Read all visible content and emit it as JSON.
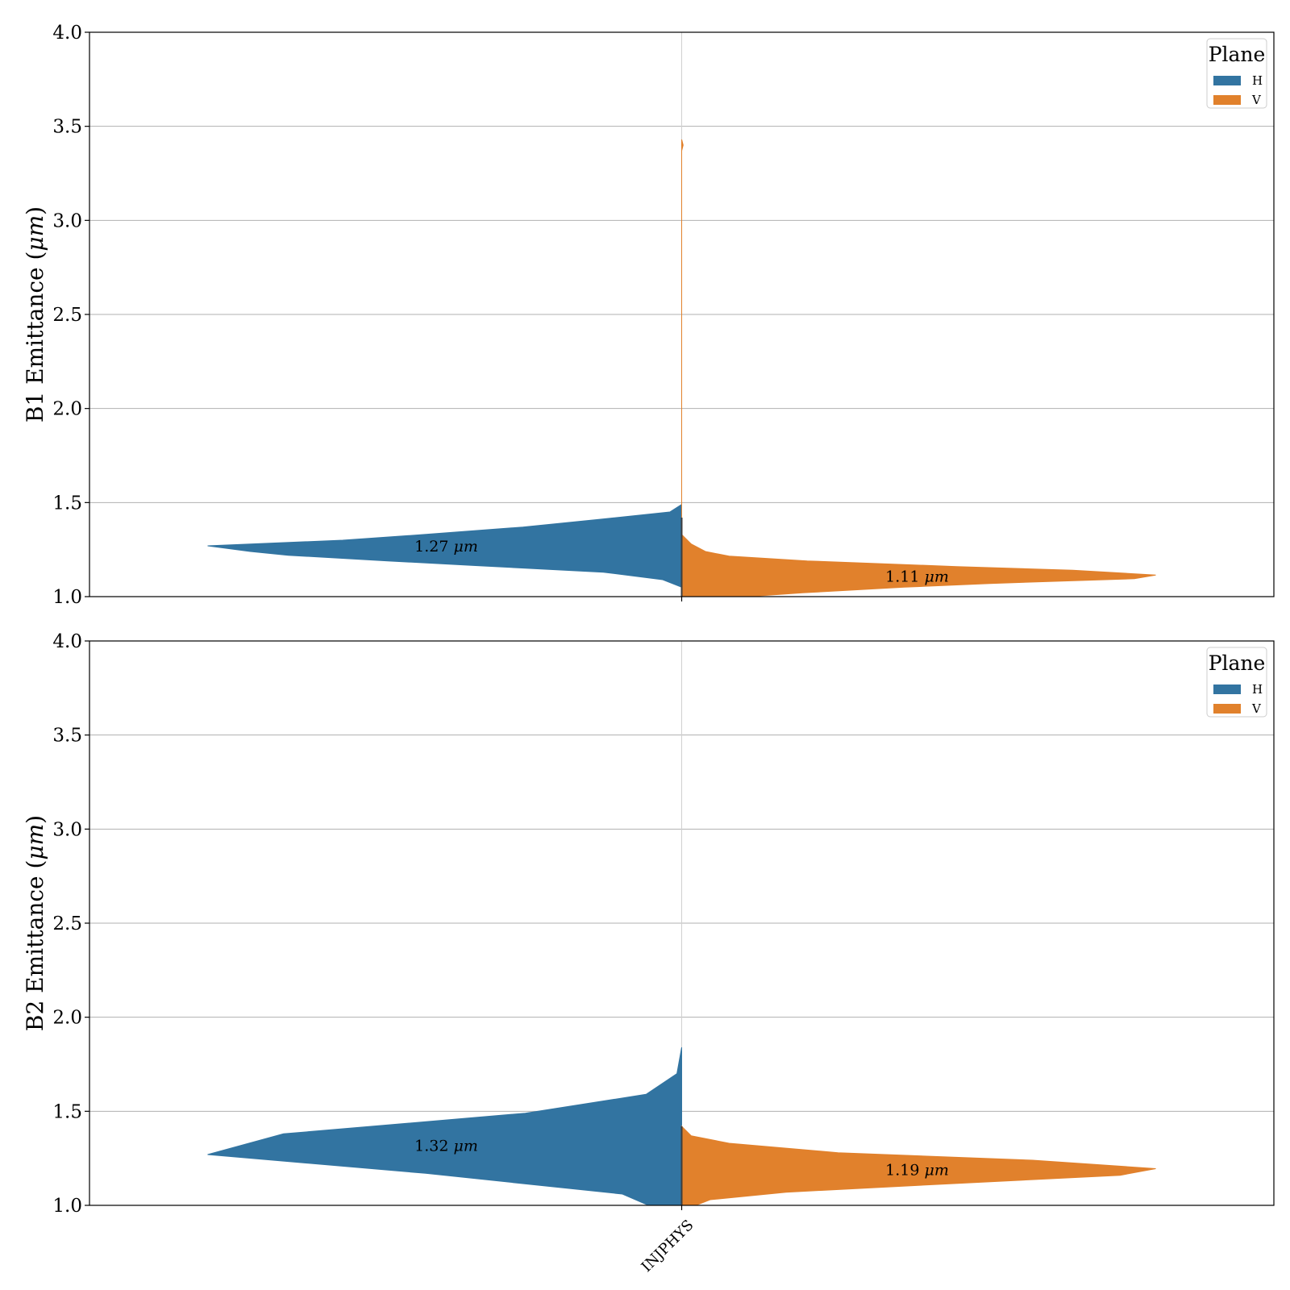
{
  "chart_data": [
    {
      "type": "violin",
      "ylabel": "B1 Emittance (μm)",
      "ylabel_prefix": "B1 Emittance (",
      "ylabel_unit": "μm",
      "ylabel_suffix": ")",
      "ylim": [
        1.0,
        4.0
      ],
      "yticks": [
        "1.0",
        "1.5",
        "2.0",
        "2.5",
        "3.0",
        "3.5",
        "4.0"
      ],
      "categories": [
        "INJPHYS"
      ],
      "grid": true,
      "legend": {
        "title": "Plane",
        "placement": "top-right",
        "entries": [
          "H",
          "V"
        ]
      },
      "series": [
        {
          "name": "H",
          "color": "#3274a1",
          "side": "left",
          "annotation": {
            "value": "1.27",
            "unit": "μm",
            "y": 1.27
          },
          "profile": [
            [
              1.05,
              0.0
            ],
            [
              1.09,
              0.04
            ],
            [
              1.13,
              0.165
            ],
            [
              1.165,
              0.435
            ],
            [
              1.19,
              0.62
            ],
            [
              1.22,
              0.83
            ],
            [
              1.24,
              0.91
            ],
            [
              1.27,
              1.0
            ],
            [
              1.3,
              0.715
            ],
            [
              1.33,
              0.545
            ],
            [
              1.37,
              0.335
            ],
            [
              1.41,
              0.175
            ],
            [
              1.45,
              0.025
            ],
            [
              1.49,
              0.0
            ]
          ]
        },
        {
          "name": "V",
          "color": "#e1812c",
          "side": "right",
          "annotation": {
            "value": "1.11",
            "unit": "μm",
            "y": 1.11
          },
          "profile": [
            [
              1.0,
              0.0
            ],
            [
              1.0,
              0.14
            ],
            [
              1.02,
              0.255
            ],
            [
              1.05,
              0.47
            ],
            [
              1.07,
              0.65
            ],
            [
              1.095,
              0.955
            ],
            [
              1.115,
              1.0
            ],
            [
              1.14,
              0.825
            ],
            [
              1.16,
              0.58
            ],
            [
              1.19,
              0.265
            ],
            [
              1.215,
              0.1
            ],
            [
              1.24,
              0.05
            ],
            [
              1.28,
              0.02
            ],
            [
              1.33,
              0.0
            ],
            [
              3.37,
              0.0
            ],
            [
              3.4,
              0.003
            ],
            [
              3.43,
              0.0
            ]
          ]
        }
      ]
    },
    {
      "type": "violin",
      "ylabel": "B2 Emittance (μm)",
      "ylabel_prefix": "B2 Emittance (",
      "ylabel_unit": "μm",
      "ylabel_suffix": ")",
      "ylim": [
        1.0,
        4.0
      ],
      "yticks": [
        "1.0",
        "1.5",
        "2.0",
        "2.5",
        "3.0",
        "3.5",
        "4.0"
      ],
      "categories": [
        "INJPHYS"
      ],
      "grid": true,
      "legend": {
        "title": "Plane",
        "placement": "top-right",
        "entries": [
          "H",
          "V"
        ]
      },
      "series": [
        {
          "name": "H",
          "color": "#3274a1",
          "side": "left",
          "annotation": {
            "value": "1.32",
            "unit": "μm",
            "y": 1.32
          },
          "profile": [
            [
              1.0,
              0.0
            ],
            [
              1.0,
              0.07
            ],
            [
              1.06,
              0.125
            ],
            [
              1.17,
              0.54
            ],
            [
              1.27,
              1.0
            ],
            [
              1.38,
              0.84
            ],
            [
              1.49,
              0.33
            ],
            [
              1.59,
              0.075
            ],
            [
              1.7,
              0.01
            ],
            [
              1.84,
              0.0
            ]
          ]
        },
        {
          "name": "V",
          "color": "#e1812c",
          "side": "right",
          "annotation": {
            "value": "1.19",
            "unit": "μm",
            "y": 1.19
          },
          "profile": [
            [
              1.0,
              0.0
            ],
            [
              1.0,
              0.03
            ],
            [
              1.03,
              0.06
            ],
            [
              1.07,
              0.22
            ],
            [
              1.1,
              0.45
            ],
            [
              1.16,
              0.925
            ],
            [
              1.195,
              1.0
            ],
            [
              1.24,
              0.74
            ],
            [
              1.28,
              0.33
            ],
            [
              1.33,
              0.1
            ],
            [
              1.37,
              0.02
            ],
            [
              1.42,
              0.0
            ]
          ]
        }
      ]
    }
  ]
}
